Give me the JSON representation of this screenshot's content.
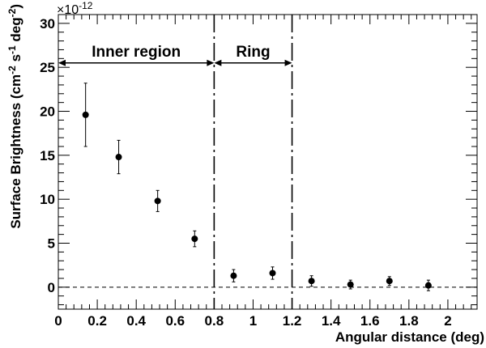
{
  "chart_data": {
    "type": "scatter",
    "xlabel": "Angular distance (deg)",
    "ylabel_parts": [
      "Surface Brightness (cm",
      "-2",
      " s",
      "-1",
      " deg",
      "-2",
      ")"
    ],
    "y_multiplier": "×10",
    "y_multiplier_exp": "-12",
    "xlim": [
      0,
      2.15
    ],
    "ylim": [
      -2.5,
      31
    ],
    "x_ticks": [
      0,
      0.2,
      0.4,
      0.6,
      0.8,
      1,
      1.2,
      1.4,
      1.6,
      1.8,
      2
    ],
    "x_tick_labels": [
      "0",
      "0.2",
      "0.4",
      "0.6",
      "0.8",
      "1",
      "1.2",
      "1.4",
      "1.6",
      "1.8",
      "2"
    ],
    "y_ticks": [
      0,
      5,
      10,
      15,
      20,
      25,
      30
    ],
    "y_tick_labels": [
      "0",
      "5",
      "10",
      "15",
      "20",
      "25",
      "30"
    ],
    "points": [
      {
        "x": 0.14,
        "y": 19.6,
        "err_low": 3.6,
        "err_high": 3.6
      },
      {
        "x": 0.31,
        "y": 14.8,
        "err_low": 1.9,
        "err_high": 1.9
      },
      {
        "x": 0.51,
        "y": 9.8,
        "err_low": 1.2,
        "err_high": 1.2
      },
      {
        "x": 0.7,
        "y": 5.5,
        "err_low": 0.9,
        "err_high": 0.9
      },
      {
        "x": 0.9,
        "y": 1.3,
        "err_low": 0.7,
        "err_high": 0.7
      },
      {
        "x": 1.1,
        "y": 1.6,
        "err_low": 0.7,
        "err_high": 0.7
      },
      {
        "x": 1.3,
        "y": 0.7,
        "err_low": 0.6,
        "err_high": 0.6
      },
      {
        "x": 1.5,
        "y": 0.3,
        "err_low": 0.5,
        "err_high": 0.5
      },
      {
        "x": 1.7,
        "y": 0.7,
        "err_low": 0.5,
        "err_high": 0.5
      },
      {
        "x": 1.9,
        "y": 0.2,
        "err_low": 0.6,
        "err_high": 0.6
      }
    ],
    "zero_line": 0,
    "boundaries_x": [
      0.8,
      1.2
    ],
    "regions": [
      {
        "label": "Inner region",
        "x_from": 0,
        "x_to": 0.8,
        "arrow_y": 25.5
      },
      {
        "label": "Ring",
        "x_from": 0.8,
        "x_to": 1.2,
        "arrow_y": 25.5
      }
    ],
    "grid": false,
    "legend": "none"
  }
}
